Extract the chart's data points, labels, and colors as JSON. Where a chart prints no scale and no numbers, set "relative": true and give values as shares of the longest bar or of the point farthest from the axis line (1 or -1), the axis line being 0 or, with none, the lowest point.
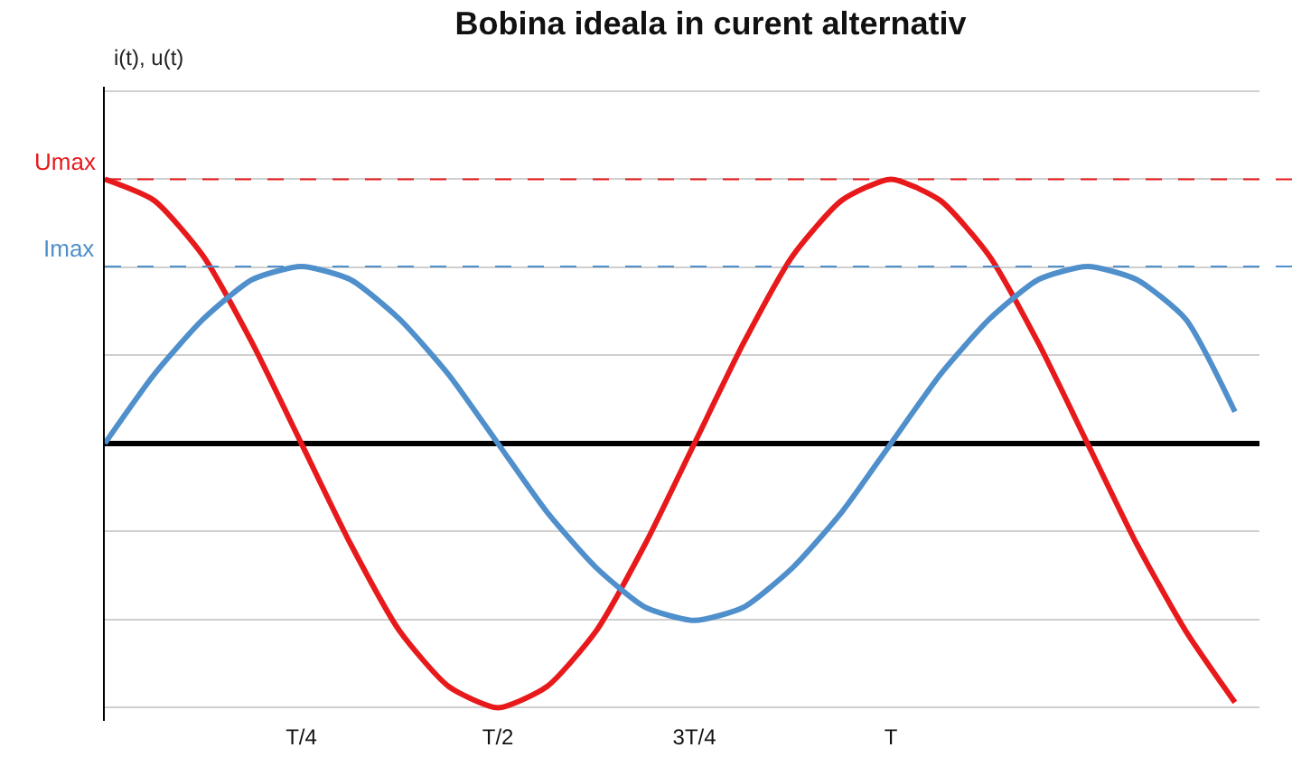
{
  "chart_data": {
    "type": "line",
    "title": "Bobina ideala in curent alternativ",
    "annotations": [
      "i(t), u(t)"
    ],
    "relative": true,
    "categories": [
      null,
      null,
      null,
      null,
      "T/4",
      null,
      null,
      null,
      "T/2",
      null,
      null,
      null,
      "3T/4",
      null,
      null,
      null,
      "T",
      null,
      null,
      null,
      null,
      null,
      null,
      null
    ],
    "series": [
      {
        "color": "#e8191b",
        "values": [
          1,
          0.92,
          0.71,
          0.38,
          0,
          -0.38,
          -0.71,
          -0.92,
          -1,
          -0.92,
          -0.71,
          -0.38,
          0,
          0.38,
          0.71,
          0.92,
          1,
          0.92,
          0.71,
          0.38,
          0,
          -0.38,
          -0.71,
          -0.98
        ]
      },
      {
        "color": "#4f8fcb",
        "values": [
          0,
          0.26,
          0.47,
          0.62,
          0.67,
          0.62,
          0.47,
          0.26,
          0,
          -0.26,
          -0.47,
          -0.62,
          -0.67,
          -0.62,
          -0.47,
          -0.26,
          0,
          0.26,
          0.47,
          0.62,
          0.67,
          0.62,
          0.47,
          0.12
        ]
      }
    ],
    "ref_lines": [
      {
        "axis": "y",
        "value": 1,
        "label": "Umax",
        "color": "#e8191b",
        "line_style": "dashed"
      },
      {
        "axis": "y",
        "value": 0.67,
        "label": "Imax",
        "color": "#4f8fcb",
        "line_style": "dashed"
      }
    ],
    "grid": "y",
    "marker": "none",
    "line_style": "solid"
  }
}
